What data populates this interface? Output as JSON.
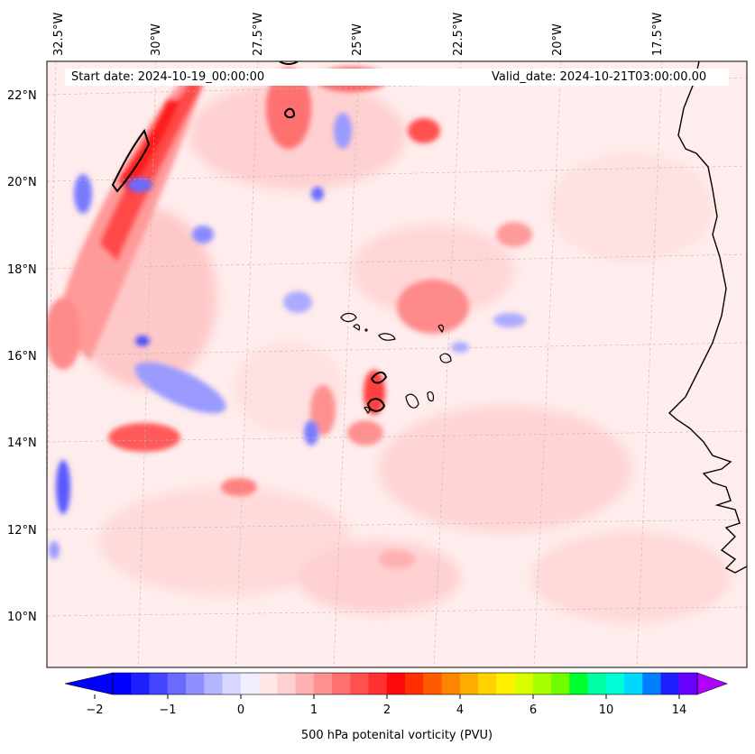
{
  "map": {
    "projection": "plate-carree (tilted grid)",
    "extent": {
      "lon_min": -33.5,
      "lon_max": -15.0,
      "lat_min": 8.8,
      "lat_max": 22.8
    },
    "start_date_label": "Start date: 2024-10-19_00:00:00",
    "valid_date_label": "Valid_date: 2024-10-21T03:00:00.00",
    "lon_labels": [
      "32.5°W",
      "30°W",
      "27.5°W",
      "25°W",
      "22.5°W",
      "20°W",
      "17.5°W"
    ],
    "lat_labels": [
      "22°N",
      "20°N",
      "18°N",
      "16°N",
      "14°N",
      "12°N",
      "10°N"
    ],
    "field": "500 hPa potential vorticity",
    "features": [
      "African coastline",
      "Cape Verde islands",
      "PV filaments"
    ]
  },
  "colorbar": {
    "label": "500 hPa potenital vorticity (PVU)",
    "tick_labels": [
      "−2",
      "−1",
      "0",
      "1",
      "2",
      "4",
      "6",
      "10",
      "14"
    ],
    "levels": [
      -2,
      -1.75,
      -1.5,
      -1.25,
      -1,
      -0.75,
      -0.5,
      -0.25,
      0,
      0.25,
      0.5,
      0.75,
      1,
      1.25,
      1.5,
      1.75,
      2,
      2.5,
      3,
      3.5,
      4,
      4.5,
      5,
      5.5,
      6,
      7,
      8,
      9,
      10,
      11,
      12,
      13,
      14
    ],
    "colors": [
      "#0000ff",
      "#2020ff",
      "#4545ff",
      "#6a6aff",
      "#8f8fff",
      "#b4b4ff",
      "#d6d6ff",
      "#eeeeff",
      "#ffe8e8",
      "#ffd0d0",
      "#ffb0b0",
      "#ff9090",
      "#ff7070",
      "#ff5050",
      "#ff3030",
      "#ff0a0a",
      "#ff3000",
      "#ff5a00",
      "#ff8400",
      "#ffac00",
      "#ffd200",
      "#fff000",
      "#d8ff00",
      "#a8ff00",
      "#70ff00",
      "#00ff30",
      "#00ffa0",
      "#00ffd8",
      "#00d8ff",
      "#0080ff",
      "#2020ff",
      "#6a00ff"
    ],
    "extend_min_color": "#0000ff",
    "extend_max_color": "#b000ff"
  }
}
